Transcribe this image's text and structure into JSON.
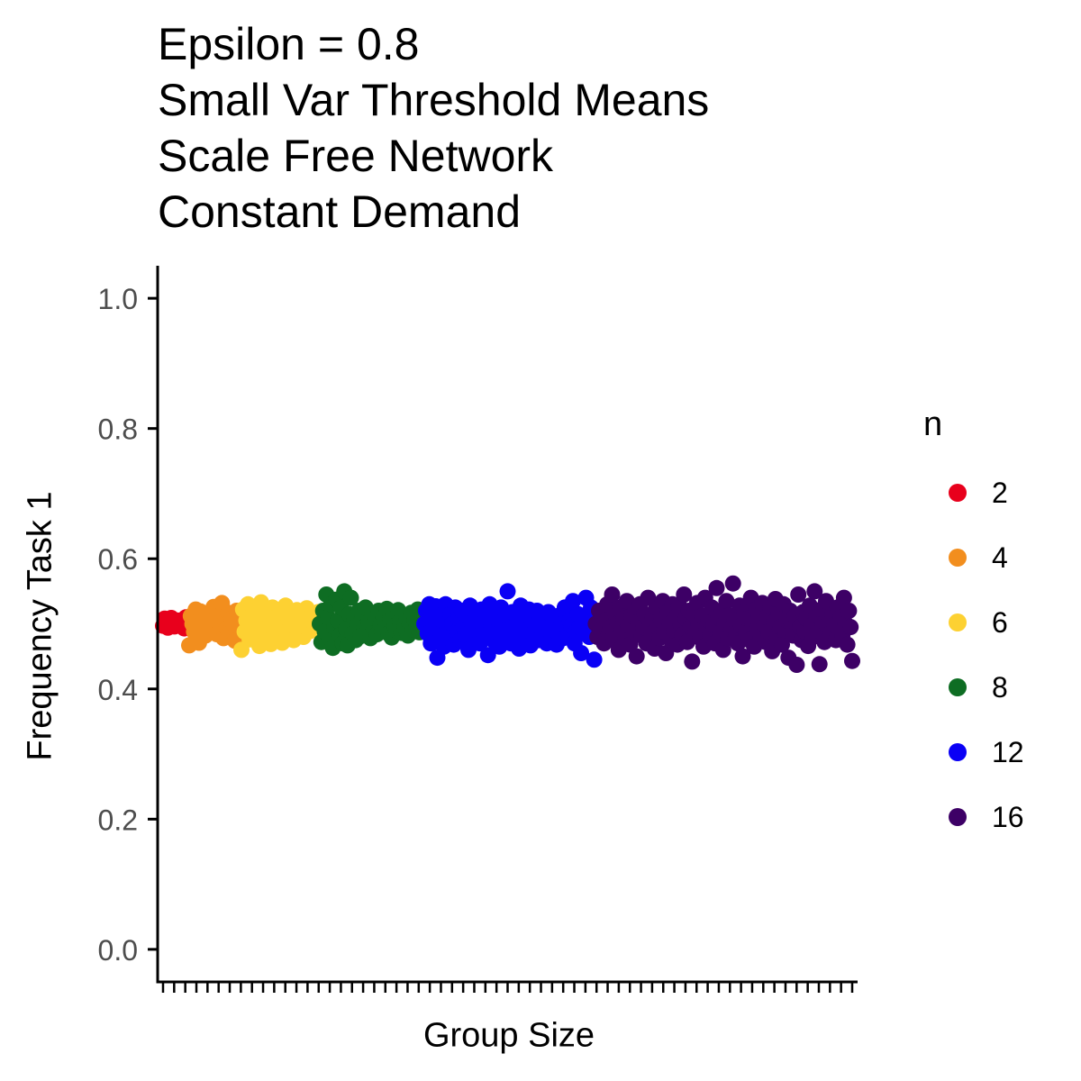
{
  "chart_data": {
    "type": "scatter",
    "title_lines": [
      "Epsilon = 0.8",
      "Small Var Threshold Means",
      "Scale Free Network",
      "Constant Demand"
    ],
    "xlabel": "Group Size",
    "ylabel": "Frequency Task 1",
    "ylim": [
      -0.05,
      1.05
    ],
    "yticks": [
      "0.0",
      "0.2",
      "0.4",
      "0.6",
      "0.8",
      "1.0"
    ],
    "grid": false,
    "legend": {
      "title": "n",
      "position": "right",
      "items": [
        {
          "label": "2",
          "color": "#e8001c"
        },
        {
          "label": "4",
          "color": "#f28e1e"
        },
        {
          "label": "6",
          "color": "#fdd132"
        },
        {
          "label": "8",
          "color": "#0e6d23"
        },
        {
          "label": "12",
          "color": "#0a00f5"
        },
        {
          "label": "16",
          "color": "#3d0066"
        }
      ]
    },
    "series": [
      {
        "name": "2",
        "color": "#e8001c",
        "values": [
          0.497,
          0.508,
          0.503,
          0.494,
          0.499,
          0.509,
          0.502,
          0.496,
          0.498,
          0.505,
          0.497,
          0.501,
          0.506,
          0.493,
          0.51,
          0.499
        ]
      },
      {
        "name": "4",
        "color": "#f28e1e",
        "values": [
          0.467,
          0.512,
          0.5,
          0.488,
          0.522,
          0.503,
          0.471,
          0.519,
          0.496,
          0.505,
          0.482,
          0.515,
          0.498,
          0.509,
          0.491,
          0.526,
          0.5,
          0.484,
          0.512,
          0.495,
          0.532,
          0.478,
          0.504,
          0.493,
          0.517,
          0.489,
          0.508,
          0.5,
          0.474,
          0.52,
          0.497,
          0.511
        ]
      },
      {
        "name": "6",
        "color": "#fdd132",
        "values": [
          0.46,
          0.522,
          0.488,
          0.505,
          0.53,
          0.476,
          0.512,
          0.495,
          0.48,
          0.52,
          0.502,
          0.466,
          0.533,
          0.49,
          0.508,
          0.473,
          0.515,
          0.497,
          0.469,
          0.525,
          0.485,
          0.51,
          0.478,
          0.502,
          0.519,
          0.471,
          0.494,
          0.528,
          0.483,
          0.506,
          0.499,
          0.516,
          0.475,
          0.503,
          0.521,
          0.487,
          0.498,
          0.512,
          0.48,
          0.496,
          0.524,
          0.508,
          0.489,
          0.5,
          0.514,
          0.493,
          0.505,
          0.518
        ]
      },
      {
        "name": "8",
        "color": "#0e6d23",
        "values": [
          0.5,
          0.472,
          0.52,
          0.488,
          0.545,
          0.51,
          0.478,
          0.53,
          0.463,
          0.495,
          0.537,
          0.505,
          0.482,
          0.525,
          0.47,
          0.55,
          0.492,
          0.467,
          0.515,
          0.54,
          0.485,
          0.508,
          0.475,
          0.498,
          0.52,
          0.481,
          0.512,
          0.495,
          0.525,
          0.487,
          0.503,
          0.478,
          0.515,
          0.492,
          0.508,
          0.484,
          0.52,
          0.498,
          0.488,
          0.511,
          0.494,
          0.523,
          0.485,
          0.505,
          0.479,
          0.515,
          0.497,
          0.49,
          0.521,
          0.503,
          0.486,
          0.512,
          0.495,
          0.508,
          0.482,
          0.5,
          0.517,
          0.491,
          0.506,
          0.494,
          0.522,
          0.487,
          0.503,
          0.512
        ]
      },
      {
        "name": "12",
        "color": "#0a00f5",
        "values": [
          0.5,
          0.52,
          0.485,
          0.53,
          0.47,
          0.51,
          0.495,
          0.527,
          0.448,
          0.512,
          0.485,
          0.505,
          0.465,
          0.53,
          0.493,
          0.478,
          0.515,
          0.5,
          0.468,
          0.525,
          0.488,
          0.508,
          0.475,
          0.52,
          0.495,
          0.483,
          0.512,
          0.46,
          0.528,
          0.502,
          0.478,
          0.518,
          0.49,
          0.505,
          0.47,
          0.522,
          0.497,
          0.482,
          0.51,
          0.452,
          0.53,
          0.495,
          0.475,
          0.515,
          0.488,
          0.507,
          0.465,
          0.525,
          0.5,
          0.48,
          0.512,
          0.55,
          0.49,
          0.47,
          0.518,
          0.495,
          0.482,
          0.505,
          0.462,
          0.528,
          0.5,
          0.478,
          0.512,
          0.49,
          0.522,
          0.467,
          0.505,
          0.485,
          0.498,
          0.52,
          0.475,
          0.51,
          0.492,
          0.483,
          0.503,
          0.47,
          0.518,
          0.495,
          0.48,
          0.508,
          0.49,
          0.468,
          0.512,
          0.485,
          0.5,
          0.478,
          0.525,
          0.495,
          0.482,
          0.505,
          0.497,
          0.535,
          0.47,
          0.488,
          0.515,
          0.495,
          0.455,
          0.503,
          0.485,
          0.54,
          0.51,
          0.48,
          0.525,
          0.492,
          0.445
        ]
      },
      {
        "name": "16",
        "color": "#3d0066",
        "values": [
          0.5,
          0.48,
          0.52,
          0.49,
          0.51,
          0.47,
          0.505,
          0.53,
          0.485,
          0.495,
          0.545,
          0.475,
          0.515,
          0.5,
          0.46,
          0.525,
          0.49,
          0.508,
          0.478,
          0.535,
          0.497,
          0.468,
          0.512,
          0.488,
          0.52,
          0.45,
          0.503,
          0.53,
          0.482,
          0.495,
          0.515,
          0.47,
          0.54,
          0.5,
          0.485,
          0.51,
          0.462,
          0.525,
          0.495,
          0.478,
          0.505,
          0.535,
          0.488,
          0.455,
          0.518,
          0.5,
          0.475,
          0.53,
          0.49,
          0.51,
          0.468,
          0.528,
          0.498,
          0.483,
          0.545,
          0.508,
          0.472,
          0.52,
          0.495,
          0.442,
          0.515,
          0.488,
          0.532,
          0.5,
          0.478,
          0.512,
          0.465,
          0.54,
          0.493,
          0.505,
          0.482,
          0.525,
          0.498,
          0.47,
          0.555,
          0.51,
          0.487,
          0.52,
          0.46,
          0.5,
          0.535,
          0.478,
          0.513,
          0.492,
          0.562,
          0.505,
          0.485,
          0.47,
          0.528,
          0.497,
          0.45,
          0.518,
          0.488,
          0.508,
          0.475,
          0.54,
          0.5,
          0.465,
          0.522,
          0.493,
          0.513,
          0.48,
          0.532,
          0.498,
          0.472,
          0.51,
          0.487,
          0.525,
          0.458,
          0.503,
          0.538,
          0.478,
          0.515,
          0.495,
          0.468,
          0.53,
          0.49,
          0.505,
          0.448,
          0.52,
          0.5,
          0.482,
          0.512,
          0.437,
          0.545,
          0.495,
          0.475,
          0.518,
          0.488,
          0.508,
          0.466,
          0.528,
          0.498,
          0.48,
          0.55,
          0.51,
          0.49,
          0.438,
          0.522,
          0.5,
          0.472,
          0.535,
          0.495,
          0.505,
          0.485,
          0.515,
          0.498,
          0.475,
          0.525,
          0.492,
          0.51,
          0.482,
          0.54,
          0.5,
          0.468,
          0.52,
          0.495,
          0.443
        ]
      }
    ]
  }
}
